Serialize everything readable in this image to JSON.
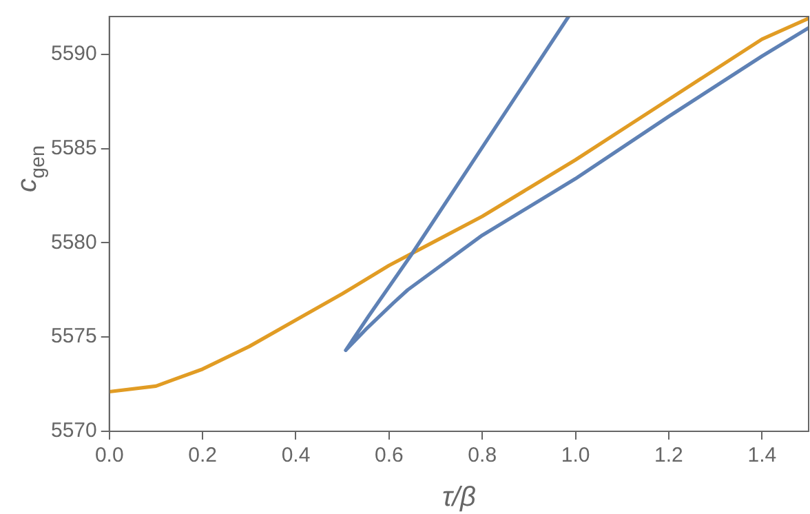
{
  "chart_data": {
    "type": "line",
    "xlabel": "τ/β",
    "ylabel": "c$_{gen}$",
    "xlim": [
      0,
      1.5
    ],
    "ylim": [
      5570,
      5592
    ],
    "xticks": [
      {
        "value": 0,
        "label": "0.0"
      },
      0.2,
      0.4,
      0.6,
      0.8,
      {
        "value": 1,
        "label": "1.0"
      },
      1.2,
      1.4
    ],
    "yticks": [
      5570,
      5575,
      5580,
      5585,
      5590
    ],
    "grid": false,
    "legend": false,
    "marker": "none",
    "line_style": "solid",
    "series": [
      {
        "color": "#5e81b5",
        "x": [
          0.985,
          0.825,
          0.646,
          0.556,
          0.507,
          0.55,
          0.609,
          0.64,
          0.8,
          1.0,
          1.2,
          1.4,
          1.5
        ],
        "values": [
          5592,
          5586.0,
          5579.3,
          5576.1,
          5574.3,
          5575.4,
          5576.8,
          5577.5,
          5580.4,
          5583.4,
          5586.7,
          5589.9,
          5591.4
        ]
      },
      {
        "color": "#e19c24",
        "x": [
          0,
          0.1,
          0.2,
          0.3,
          0.4,
          0.5,
          0.6,
          0.7,
          0.8,
          0.9,
          1.0,
          1.1,
          1.2,
          1.3,
          1.4,
          1.5
        ],
        "values": [
          5572.1,
          5572.4,
          5573.3,
          5574.5,
          5575.9,
          5577.3,
          5578.8,
          5580.1,
          5581.4,
          5582.9,
          5584.4,
          5586.0,
          5587.6,
          5589.2,
          5590.8,
          5591.9
        ]
      }
    ]
  }
}
